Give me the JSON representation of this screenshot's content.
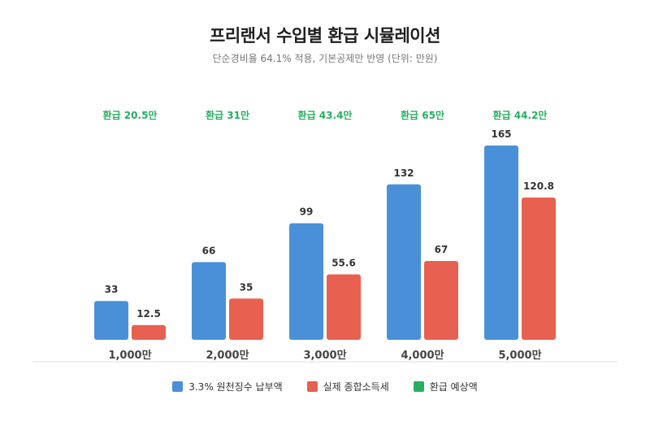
{
  "chart_data": {
    "type": "bar",
    "title": "프리랜서 수입별 환급 시뮬레이션",
    "subtitle": "단순경비율 64.1% 적용, 기본공제만 반영 (단위: 만원)",
    "categories": [
      "1,000만",
      "2,000만",
      "3,000만",
      "4,000만",
      "5,000만"
    ],
    "series": [
      {
        "name": "3.3% 원천징수 납부액",
        "color": "#4a90d9",
        "values": [
          33,
          66,
          99,
          132,
          165
        ],
        "labels": [
          "33",
          "66",
          "99",
          "132",
          "165"
        ]
      },
      {
        "name": "실제 종합소득세",
        "color": "#e8604f",
        "values": [
          12.5,
          35,
          55.6,
          67,
          120.8
        ],
        "labels": [
          "12.5",
          "35",
          "55.6",
          "67",
          "120.8"
        ]
      }
    ],
    "refund": {
      "name": "환급 예상액",
      "color": "#27ae60",
      "values": [
        20.5,
        31,
        43.4,
        65,
        44.2
      ],
      "labels": [
        "환급 20.5만",
        "환급 31만",
        "환급 43.4만",
        "환급 65만",
        "환급 44.2만"
      ]
    },
    "xlabel": "",
    "ylabel": "",
    "ylim": [
      0,
      165
    ],
    "grid": false,
    "legend_position": "bottom"
  }
}
